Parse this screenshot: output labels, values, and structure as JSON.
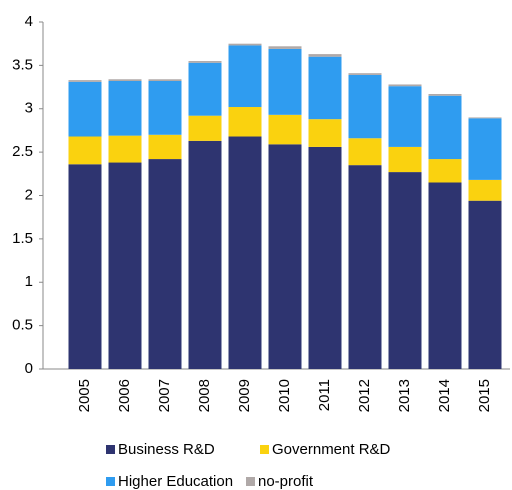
{
  "chart_data": {
    "type": "stacked_bar",
    "categories": [
      "2005",
      "2006",
      "2007",
      "2008",
      "2009",
      "2010",
      "2011",
      "2012",
      "2013",
      "2014",
      "2015"
    ],
    "series": [
      {
        "name": "Business R&D",
        "color": "#2e3470",
        "values": [
          2.36,
          2.38,
          2.42,
          2.63,
          2.68,
          2.59,
          2.56,
          2.35,
          2.27,
          2.15,
          1.94
        ]
      },
      {
        "name": "Government R&D",
        "color": "#fad20f",
        "values": [
          0.32,
          0.31,
          0.28,
          0.29,
          0.34,
          0.34,
          0.32,
          0.31,
          0.29,
          0.27,
          0.24
        ]
      },
      {
        "name": "Higher Education",
        "color": "#2f9cf0",
        "values": [
          0.63,
          0.63,
          0.62,
          0.61,
          0.71,
          0.76,
          0.72,
          0.73,
          0.7,
          0.73,
          0.71
        ]
      },
      {
        "name": "no-profit",
        "color": "#b0a9a8",
        "values": [
          0.02,
          0.02,
          0.02,
          0.02,
          0.02,
          0.03,
          0.03,
          0.02,
          0.02,
          0.02,
          0.01
        ]
      }
    ],
    "ylim": [
      0,
      4
    ],
    "yticks": [
      0,
      0.5,
      1,
      1.5,
      2,
      2.5,
      3,
      3.5,
      4
    ],
    "grid": false
  }
}
